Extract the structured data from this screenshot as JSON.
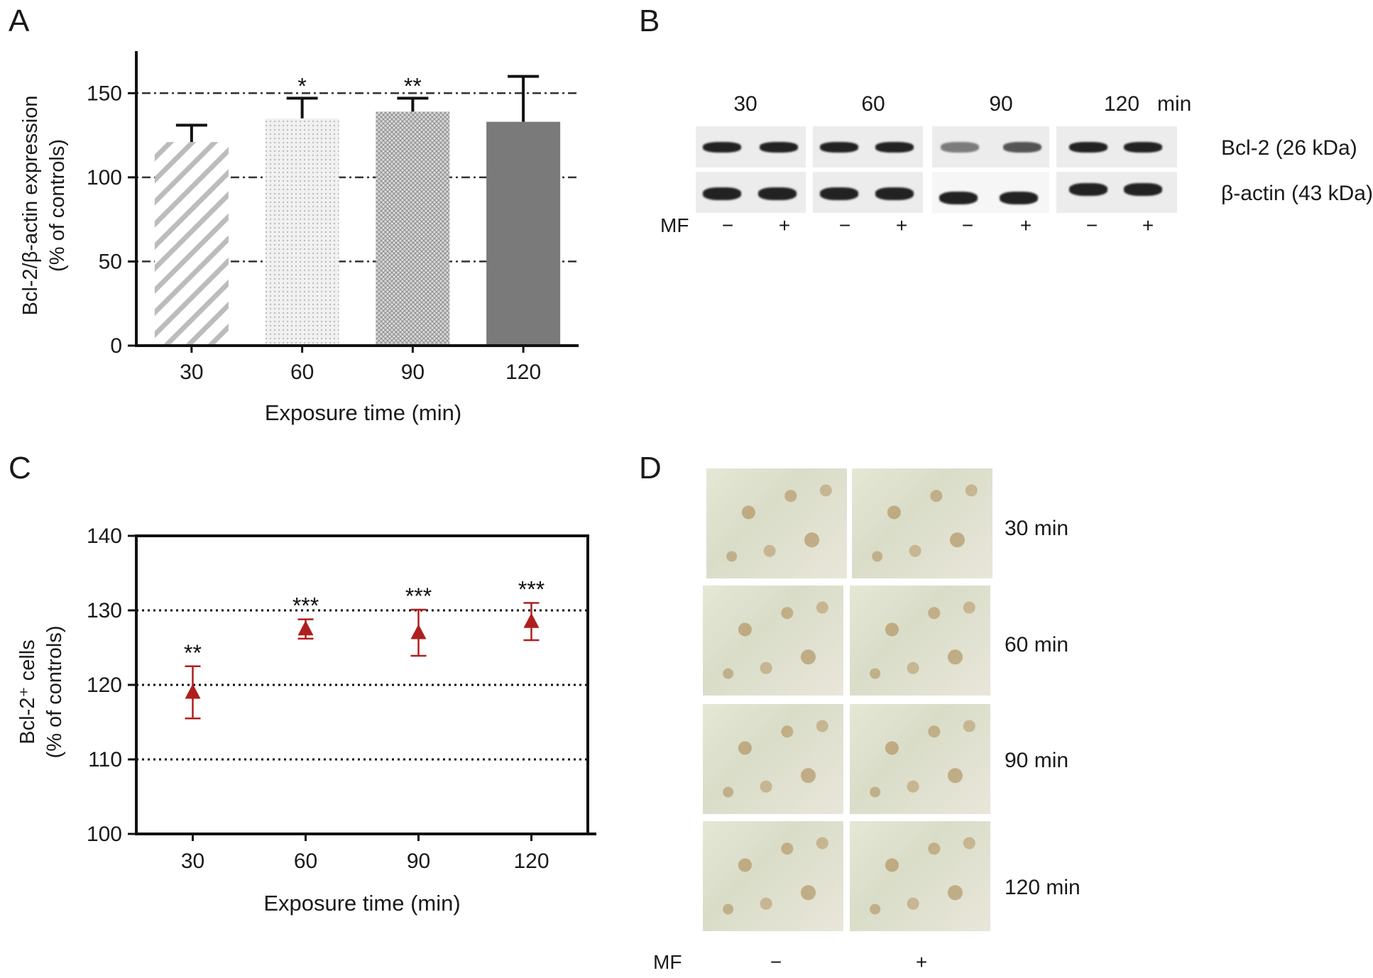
{
  "panels": {
    "a": "A",
    "b": "B",
    "c": "C",
    "d": "D"
  },
  "chart_data": [
    {
      "type": "bar",
      "panel": "A",
      "categories": [
        "30",
        "60",
        "90",
        "120"
      ],
      "values": [
        121,
        135,
        139,
        133
      ],
      "errors": [
        10,
        12,
        8,
        27
      ],
      "significance": [
        "",
        "*",
        "**",
        ""
      ],
      "fills": [
        "diagonal-hatch",
        "light-dots",
        "dense-cross",
        "solid-gray"
      ],
      "xlabel": "Exposure time (min)",
      "ylabel_line1": "Bcl-2/β-actin expression",
      "ylabel_line2": "(% of controls)",
      "ylim": [
        0,
        175
      ],
      "yticks": [
        0,
        50,
        100,
        150
      ],
      "grid": "dotted at 50, 100, 150"
    },
    {
      "type": "scatter",
      "panel": "C",
      "categories": [
        "30",
        "60",
        "90",
        "120"
      ],
      "values": [
        119,
        127.5,
        127,
        128.5
      ],
      "errors": [
        3.5,
        1.3,
        3.1,
        2.5
      ],
      "significance": [
        "**",
        "***",
        "***",
        "***"
      ],
      "marker_color": "#b01e1e",
      "xlabel": "Exposure time (min)",
      "ylabel_line1": "Bcl-2⁺ cells",
      "ylabel_line2": "(% of controls)",
      "ylim": [
        100,
        140
      ],
      "yticks": [
        100,
        110,
        120,
        130,
        140
      ],
      "grid": "dotted at 110, 120, 130"
    }
  ],
  "blot": {
    "times": [
      "30",
      "60",
      "90",
      "120"
    ],
    "unit": "min",
    "rows": [
      "Bcl-2 (26 kDa)",
      "β-actin (43 kDa)"
    ],
    "mf_label": "MF",
    "minus": "−",
    "plus": "+"
  },
  "micrographs": {
    "labels": [
      "30 min",
      "60 min",
      "90 min",
      "120 min"
    ],
    "mf_label": "MF",
    "minus": "−",
    "plus": "+"
  }
}
